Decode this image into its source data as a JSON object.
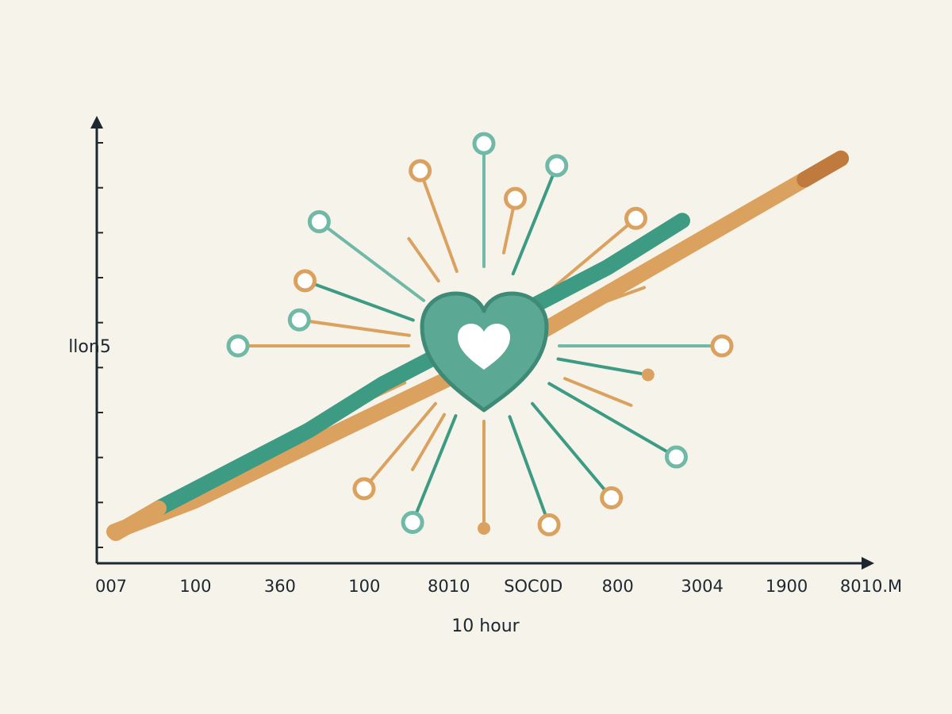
{
  "chart_data": {
    "type": "line",
    "title": "",
    "xlabel": "10 hour",
    "ylabel": "llon5",
    "x_tick_labels": [
      "007",
      "100",
      "360",
      "100",
      "8010",
      "SOC0D",
      "800",
      "3004",
      "1900",
      "8010.M"
    ],
    "y_tick_count": 10,
    "series": [
      {
        "color_key": "orange",
        "values": [
          0.02,
          0.1,
          0.2,
          0.3,
          0.4,
          0.5,
          0.62,
          0.74,
          0.86,
          0.98
        ]
      },
      {
        "color_key": "teal",
        "values": [
          0.08,
          0.18,
          0.28,
          0.4,
          0.5,
          0.6,
          0.7,
          0.82
        ]
      }
    ],
    "center_icon": "heart-icon",
    "grid": false,
    "legend": "none"
  },
  "colors": {
    "background": "#f5f3ea",
    "teal": "#3d9a83",
    "teal_light": "#6fb9a6",
    "orange": "#dba15e",
    "orange_dark": "#c07a3d",
    "axis": "#1c2730",
    "heart_fill": "#5ba995",
    "heart_stroke": "#3e8a77",
    "white": "#ffffff"
  }
}
